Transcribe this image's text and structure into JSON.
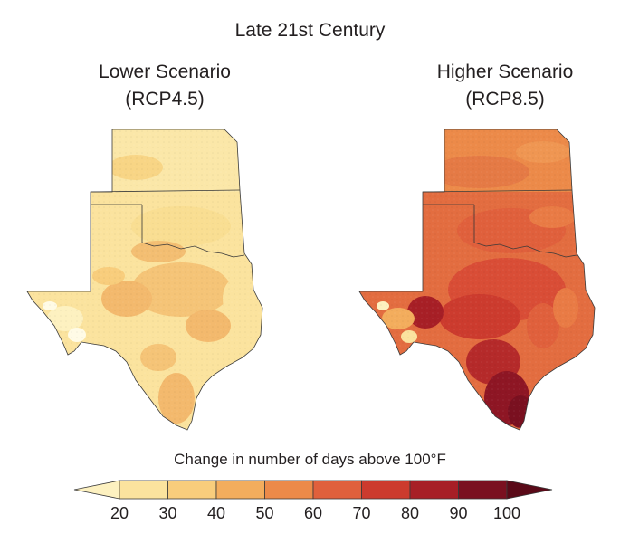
{
  "figure": {
    "title": "Late 21st Century",
    "panels": [
      {
        "title_line1": "Lower Scenario",
        "title_line2": "(RCP4.5)"
      },
      {
        "title_line1": "Higher Scenario",
        "title_line2": "(RCP8.5)"
      }
    ]
  },
  "legend": {
    "title": "Change in number of days above 100°F",
    "ticks": [
      "20",
      "30",
      "40",
      "50",
      "60",
      "70",
      "80",
      "90",
      "100"
    ],
    "colors": [
      "#fdf1c0",
      "#fbe39e",
      "#f8cd7c",
      "#f3ad5d",
      "#ec8a49",
      "#e0603c",
      "#cc3b2e",
      "#a71f26",
      "#7a1020",
      "#5a0a18"
    ]
  }
}
